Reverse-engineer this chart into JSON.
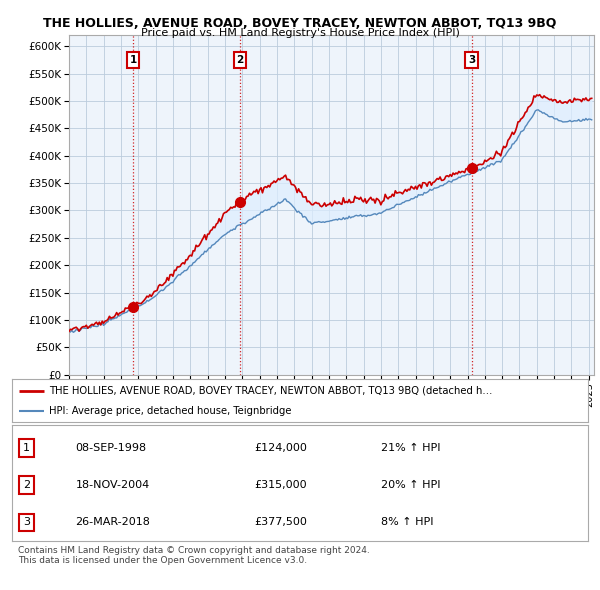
{
  "title": "THE HOLLIES, AVENUE ROAD, BOVEY TRACEY, NEWTON ABBOT, TQ13 9BQ",
  "subtitle": "Price paid vs. HM Land Registry's House Price Index (HPI)",
  "ylim": [
    0,
    620000
  ],
  "yticks": [
    0,
    50000,
    100000,
    150000,
    200000,
    250000,
    300000,
    350000,
    400000,
    450000,
    500000,
    550000,
    600000
  ],
  "ytick_labels": [
    "£0",
    "£50K",
    "£100K",
    "£150K",
    "£200K",
    "£250K",
    "£300K",
    "£350K",
    "£400K",
    "£450K",
    "£500K",
    "£550K",
    "£600K"
  ],
  "sale_dates": [
    "1998-09-08",
    "2004-11-18",
    "2018-03-26"
  ],
  "sale_prices": [
    124000,
    315000,
    377500
  ],
  "sale_labels": [
    "1",
    "2",
    "3"
  ],
  "red_line_color": "#cc0000",
  "blue_line_color": "#5588bb",
  "fill_color": "#ddeeff",
  "vline_color": "#cc0000",
  "dot_color": "#cc0000",
  "background_color": "#ffffff",
  "chart_bg_color": "#eef4fb",
  "grid_color": "#bbccdd",
  "legend_label_red": "THE HOLLIES, AVENUE ROAD, BOVEY TRACEY, NEWTON ABBOT, TQ13 9BQ (detached h…",
  "legend_label_blue": "HPI: Average price, detached house, Teignbridge",
  "table_rows": [
    {
      "label": "1",
      "date": "08-SEP-1998",
      "price": "£124,000",
      "change": "21% ↑ HPI"
    },
    {
      "label": "2",
      "date": "18-NOV-2004",
      "price": "£315,000",
      "change": "20% ↑ HPI"
    },
    {
      "label": "3",
      "date": "26-MAR-2018",
      "price": "£377,500",
      "change": "8% ↑ HPI"
    }
  ],
  "footer": "Contains HM Land Registry data © Crown copyright and database right 2024.\nThis data is licensed under the Open Government Licence v3.0.",
  "xstart": 1995.0,
  "xend": 2025.3
}
